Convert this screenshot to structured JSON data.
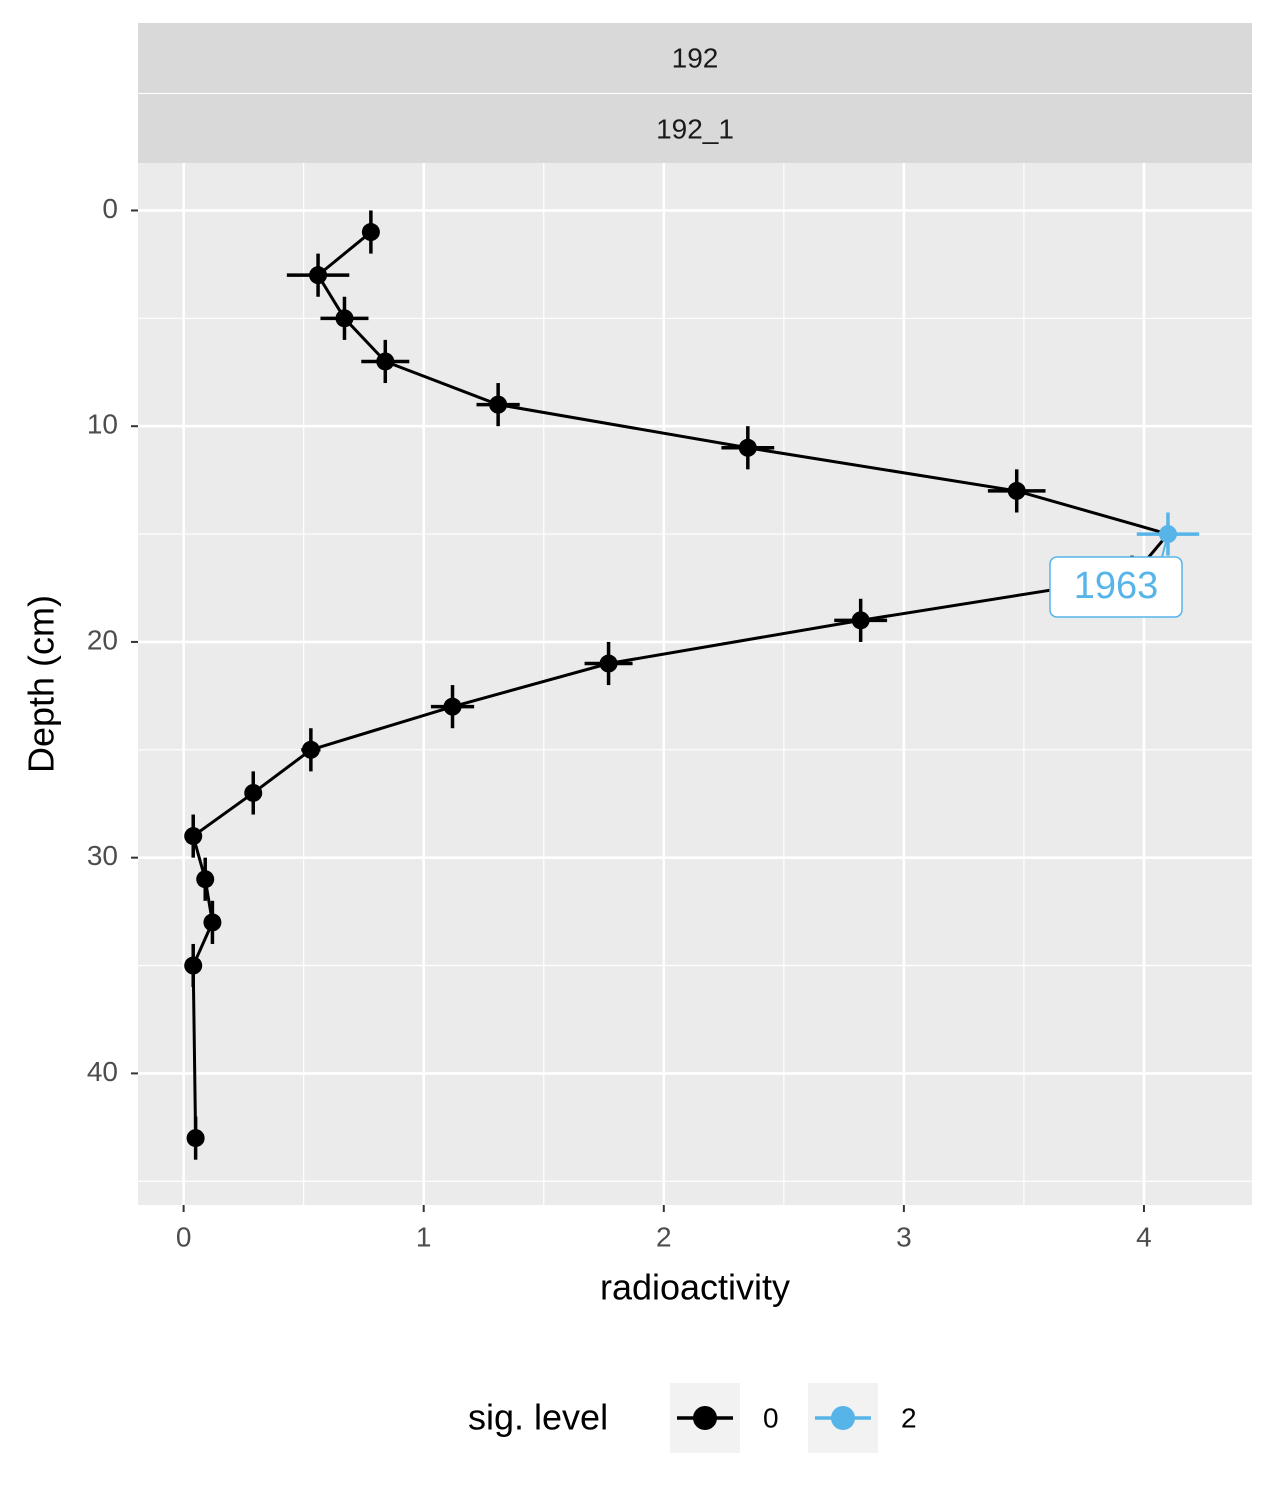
{
  "chart_data": {
    "type": "scatter",
    "strips": [
      "192",
      "192_1"
    ],
    "x_label": "radioactivity",
    "y_label": "Depth (cm)",
    "x": [
      0.78,
      0.56,
      0.67,
      0.84,
      1.31,
      2.35,
      3.47,
      4.1,
      3.95,
      2.82,
      1.77,
      1.12,
      0.53,
      0.29,
      0.04,
      0.09,
      0.12,
      0.04,
      0.05
    ],
    "y": [
      1,
      3,
      5,
      7,
      9,
      11,
      13,
      15,
      17,
      19,
      21,
      23,
      25,
      27,
      29,
      31,
      33,
      35,
      43
    ],
    "x_err": [
      0.02,
      0.13,
      0.1,
      0.1,
      0.09,
      0.11,
      0.12,
      0.13,
      0.1,
      0.11,
      0.1,
      0.09,
      0.04,
      0.03,
      0.02,
      0.02,
      0.02,
      0.02,
      0.02
    ],
    "y_err": [
      1,
      1,
      1,
      1,
      1,
      1,
      1,
      1,
      1,
      1,
      1,
      1,
      1,
      1,
      1,
      1,
      1,
      1,
      1
    ],
    "sig_level": [
      "0",
      "0",
      "0",
      "0",
      "0",
      "0",
      "0",
      "2",
      "0",
      "0",
      "0",
      "0",
      "0",
      "0",
      "0",
      "0",
      "0",
      "0",
      "0"
    ],
    "line_color": "#000000",
    "annotation": "1963",
    "legend_title": "sig. level",
    "legend": [
      {
        "name": "0",
        "color": "#000000"
      },
      {
        "name": "2",
        "color": "#56B4E9"
      }
    ],
    "xlim": [
      -0.19,
      4.45
    ],
    "ylim": [
      -2.2,
      46.1
    ],
    "y_reversed": true,
    "xticks": [
      0,
      1,
      2,
      3,
      4
    ],
    "yticks": [
      0,
      10,
      20,
      30,
      40
    ],
    "grid": true
  }
}
